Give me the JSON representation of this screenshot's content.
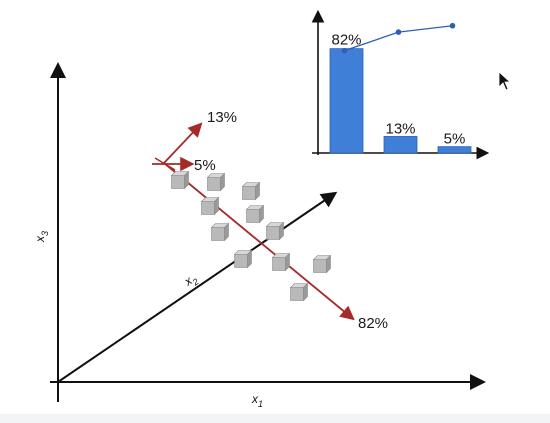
{
  "diagram": {
    "axes": {
      "x1": {
        "base": "x",
        "sub": "1"
      },
      "x2": {
        "base": "x",
        "sub": "2"
      },
      "x3": {
        "base": "x",
        "sub": "3"
      }
    },
    "component_labels": {
      "pc1": "82%",
      "pc2": "13%",
      "pc3": "5%"
    },
    "colors": {
      "axis": "#111111",
      "component": "#a52a2a",
      "bar": "#3f7fd8",
      "line": "#2f5fb3",
      "cube_top": "#d7d7d7",
      "cube_front": "#b9b9b9",
      "cube_side": "#9a9a9a"
    }
  },
  "chart_data": {
    "type": "bar",
    "categories": [
      "",
      "",
      ""
    ],
    "values": [
      82,
      13,
      5
    ],
    "data_labels": [
      "82%",
      "13%",
      "5%"
    ],
    "cumulative": [
      82,
      95,
      100
    ],
    "ylim": [
      0,
      110
    ],
    "grid": false,
    "legend": "none"
  },
  "cursor": {
    "icon": "mouse-cursor-icon"
  }
}
